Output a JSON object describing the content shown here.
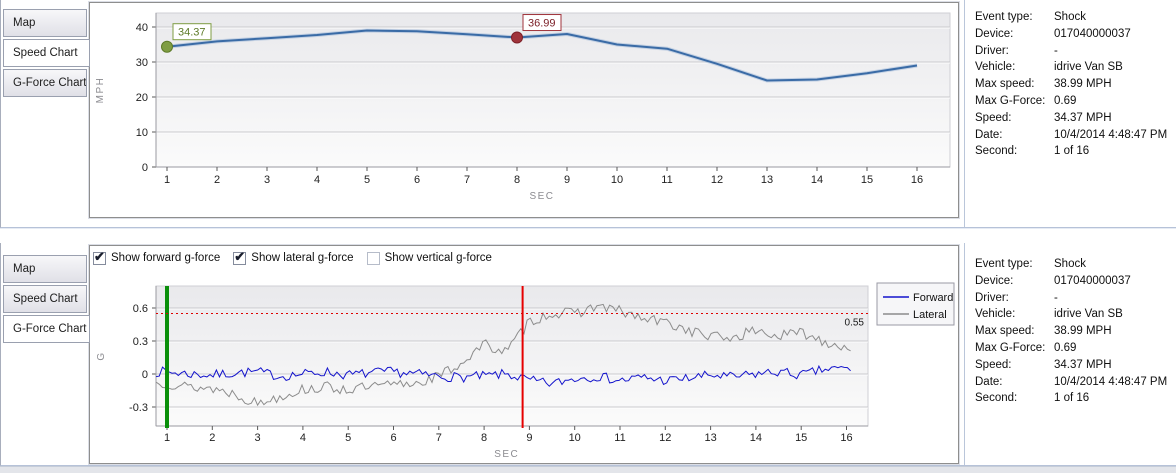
{
  "tabs": [
    {
      "label": "Map"
    },
    {
      "label": "Speed Chart"
    },
    {
      "label": "G-Force Chart"
    }
  ],
  "top_panel": {
    "active_tab": "Speed Chart"
  },
  "bottom_panel": {
    "active_tab": "G-Force Chart",
    "checkboxes": [
      {
        "label": "Show forward g-force",
        "checked": true
      },
      {
        "label": "Show lateral g-force",
        "checked": true
      },
      {
        "label": "Show vertical g-force",
        "checked": false
      }
    ]
  },
  "details": {
    "rows": [
      {
        "label": "Event type:",
        "value": "Shock"
      },
      {
        "label": "Device:",
        "value": "017040000037"
      },
      {
        "label": "Driver:",
        "value": "-"
      },
      {
        "label": "Vehicle:",
        "value": "idrive Van SB"
      },
      {
        "label": "Max speed:",
        "value": "38.99 MPH"
      },
      {
        "label": "Max G-Force:",
        "value": "0.69"
      },
      {
        "label": "Speed:",
        "value": "34.37 MPH"
      },
      {
        "label": "Date:",
        "value": "10/4/2014 4:48:47 PM"
      },
      {
        "label": "Second:",
        "value": "1 of 16"
      }
    ]
  },
  "chart_data": [
    {
      "type": "line",
      "title": "Speed Chart",
      "xlabel": "SEC",
      "ylabel": "MPH",
      "x": [
        1,
        2,
        3,
        4,
        5,
        6,
        7,
        8,
        9,
        10,
        11,
        12,
        13,
        14,
        15,
        16
      ],
      "values": [
        34.37,
        35.9,
        36.8,
        37.7,
        38.99,
        38.8,
        37.9,
        36.99,
        38.0,
        35.0,
        33.8,
        29.5,
        24.7,
        25.0,
        26.8,
        29.0
      ],
      "ylim": [
        0,
        42
      ],
      "yticks": [
        0,
        10,
        20,
        30,
        40
      ],
      "xticks": [
        1,
        2,
        3,
        4,
        5,
        6,
        7,
        8,
        9,
        10,
        11,
        12,
        13,
        14,
        15,
        16
      ],
      "grid": true,
      "legend_position": "none",
      "line_color": "#3a6ba6",
      "line_halo_color": "#9cb6d8",
      "annotations": [
        {
          "x": 1,
          "y": 34.37,
          "label": "34.37",
          "fill": "#7f9d43",
          "stroke": "#5d7a28"
        },
        {
          "x": 8,
          "y": 36.99,
          "label": "36.99",
          "fill": "#a0333b",
          "stroke": "#7c2028"
        }
      ]
    },
    {
      "type": "line",
      "title": "G-Force Chart",
      "xlabel": "SEC",
      "ylabel": "G",
      "x_start": 1,
      "x_step": 0.5,
      "x_range": [
        0.76,
        16.12
      ],
      "xticks": [
        1,
        2,
        3,
        4,
        5,
        6,
        7,
        8,
        9,
        10,
        11,
        12,
        13,
        14,
        15,
        16
      ],
      "yticks": [
        -0.3,
        0,
        0.3,
        0.6
      ],
      "ylim": [
        -0.47,
        0.8
      ],
      "grid": true,
      "legend_position": "top-right",
      "series": [
        {
          "name": "Forward",
          "color": "#1414cc",
          "noise": 0.045,
          "values": [
            0.02,
            0.0,
            -0.01,
            0.01,
            0.02,
            -0.02,
            0.0,
            0.02,
            -0.01,
            0.01,
            0.02,
            0.0,
            -0.02,
            -0.03,
            -0.02,
            0.0,
            -0.06,
            -0.09,
            -0.04,
            -0.02,
            -0.06,
            -0.03,
            -0.06,
            -0.04,
            -0.01,
            -0.03,
            0.0,
            0.02,
            -0.01,
            0.04,
            0.05
          ]
        },
        {
          "name": "Lateral",
          "color": "#8c8c8c",
          "noise": 0.05,
          "values": [
            -0.08,
            -0.12,
            -0.13,
            -0.18,
            -0.27,
            -0.2,
            -0.14,
            -0.12,
            -0.14,
            -0.12,
            -0.1,
            -0.08,
            -0.02,
            0.1,
            0.27,
            0.2,
            0.48,
            0.55,
            0.55,
            0.62,
            0.57,
            0.5,
            0.47,
            0.4,
            0.34,
            0.33,
            0.4,
            0.34,
            0.38,
            0.3,
            0.24
          ]
        }
      ],
      "threshold": {
        "y": 0.55,
        "label": "0.55",
        "color": "#dd0000"
      },
      "vlines": [
        {
          "x": 1,
          "color": "#0a8f0a",
          "width": 4,
          "name": "event-start-marker-line"
        },
        {
          "x": 8.85,
          "color": "#e60000",
          "width": 2,
          "name": "event-trigger-marker-line"
        }
      ]
    }
  ]
}
